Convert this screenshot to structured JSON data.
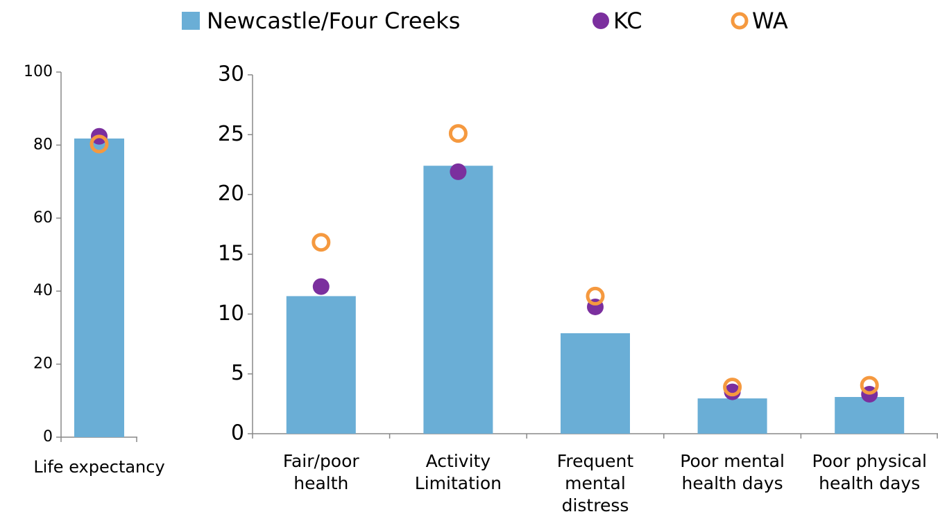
{
  "chart_data": [
    {
      "type": "bar",
      "categories": [
        "Life expectancy"
      ],
      "series": [
        {
          "name": "Newcastle/Four Creeks",
          "color": "#6aaed6",
          "marker": "bar",
          "values": [
            81.8
          ]
        },
        {
          "name": "KC",
          "color": "#7b2f9e",
          "marker": "dot",
          "values": [
            82.4
          ]
        },
        {
          "name": "WA",
          "color": "#f5993f",
          "marker": "ring",
          "values": [
            80.3
          ]
        }
      ],
      "ylim": [
        0,
        100
      ],
      "yticks": [
        0,
        20,
        40,
        60,
        80,
        100
      ]
    },
    {
      "type": "bar",
      "categories": [
        "Fair/poor\nhealth",
        "Activity\nLimitation",
        "Frequent\nmental\ndistress",
        "Poor mental\nhealth days",
        "Poor physical\nhealth days"
      ],
      "series": [
        {
          "values": [
            11.5,
            22.4,
            8.4,
            2.95,
            3.07
          ]
        },
        {
          "values": [
            12.3,
            21.9,
            10.6,
            3.5,
            3.3
          ]
        },
        {
          "values": [
            16.0,
            25.1,
            11.5,
            3.9,
            4.05
          ]
        }
      ],
      "ylim": [
        0,
        30
      ],
      "yticks": [
        0,
        5,
        10,
        15,
        20,
        25,
        30
      ]
    }
  ]
}
